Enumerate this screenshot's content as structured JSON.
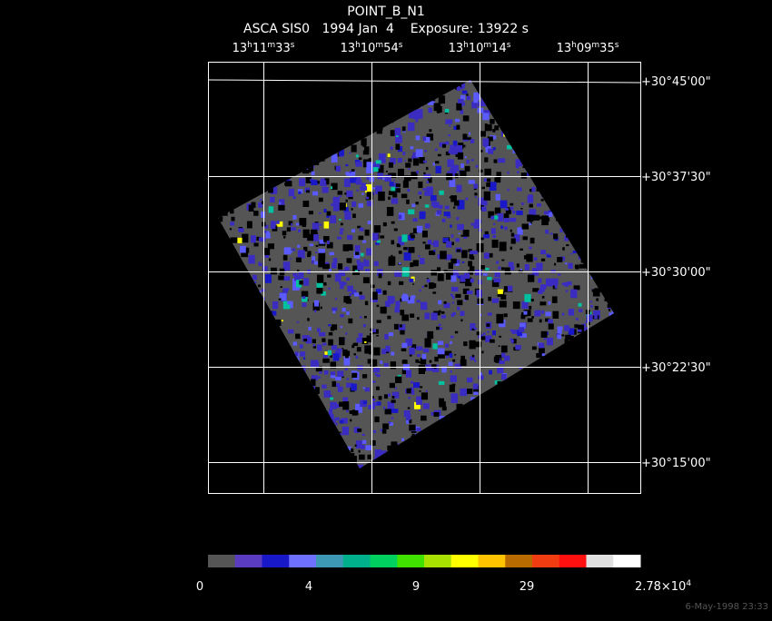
{
  "title": "POINT_B_N1",
  "subtitle": "ASCA SIS0   1994 Jan  4    Exposure: 13922 s",
  "ra_labels": [
    [
      "13",
      "h",
      "11",
      "m",
      "33",
      "s"
    ],
    [
      "13",
      "h",
      "10",
      "m",
      "54",
      "s"
    ],
    [
      "13",
      "h",
      "10",
      "m",
      "14",
      "s"
    ],
    [
      "13",
      "h",
      "09",
      "m",
      "35",
      "s"
    ]
  ],
  "dec_labels": [
    "+30°45'00\"",
    "+30°37'30\"",
    "+30°30'00\"",
    "+30°22'30\"",
    "+30°15'00\""
  ],
  "colorbar_labels": [
    [
      "0"
    ],
    [
      "4"
    ],
    [
      "9"
    ],
    [
      "29"
    ],
    [
      "2.78×10",
      "4"
    ]
  ],
  "timestamp": "6-May-1998 23:33"
}
